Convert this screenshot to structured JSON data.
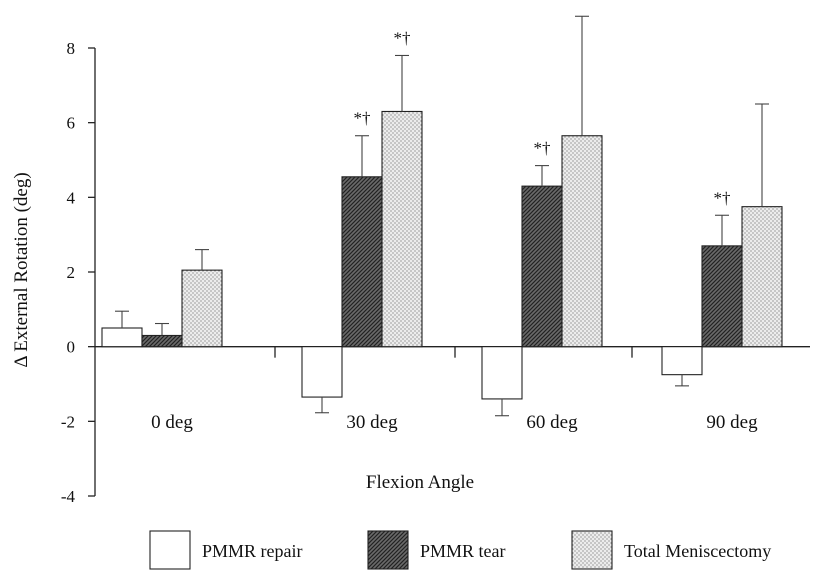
{
  "chart_data": {
    "type": "bar",
    "title": "",
    "xlabel": "Flexion Angle",
    "ylabel": "Δ External Rotation (deg)",
    "ylim": [
      -4,
      9
    ],
    "yticks": [
      -4,
      -2,
      0,
      2,
      4,
      6,
      8
    ],
    "categories": [
      "0 deg",
      "30 deg",
      "60 deg",
      "90 deg"
    ],
    "series": [
      {
        "name": "PMMR repair",
        "values": [
          0.5,
          -1.35,
          -1.4,
          -0.75
        ],
        "errors": [
          0.45,
          0.42,
          0.45,
          0.3
        ],
        "fill": "#ffffff"
      },
      {
        "name": "PMMR tear",
        "values": [
          0.3,
          4.55,
          4.3,
          2.7
        ],
        "errors": [
          0.32,
          1.1,
          0.55,
          0.82
        ],
        "fill": "#555555"
      },
      {
        "name": "Total Meniscectomy",
        "values": [
          2.05,
          6.3,
          5.65,
          3.75
        ],
        "errors": [
          0.55,
          1.5,
          3.2,
          2.75
        ],
        "fill": "#d4d4d4"
      }
    ],
    "annotations": [
      {
        "category": "30 deg",
        "series": "PMMR tear",
        "text": "*†"
      },
      {
        "category": "30 deg",
        "series": "Total Meniscectomy",
        "text": "*†"
      },
      {
        "category": "60 deg",
        "series": "PMMR tear",
        "text": "*†"
      },
      {
        "category": "90 deg",
        "series": "PMMR tear",
        "text": "*†"
      }
    ],
    "grid": false,
    "legend_position": "bottom"
  }
}
